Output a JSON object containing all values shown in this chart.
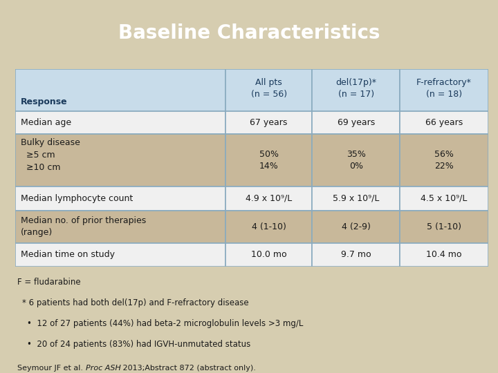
{
  "title": "Baseline Characteristics",
  "title_bg": "#0d3660",
  "title_color": "#ffffff",
  "page_bg": "#d6cdb0",
  "table_header_bg": "#c8dcea",
  "table_header_text": "#1a3a5c",
  "table_row_bg_light": "#f0f0f0",
  "table_row_bg_dark": "#c8b89a",
  "table_border_color": "#8aabbf",
  "col_headers": [
    "All pts\n(n = 56)",
    "del(17p)*\n(n = 17)",
    "F-refractory*\n(n = 18)"
  ],
  "row_label": "Response",
  "rows": [
    {
      "label": "Median age",
      "values": [
        "67 years",
        "69 years",
        "66 years"
      ],
      "bg": "light"
    },
    {
      "label": "Bulky disease\n  ≥5 cm\n  ≥10 cm",
      "values": [
        "50%\n14%",
        "35%\n0%",
        "56%\n22%"
      ],
      "bg": "dark"
    },
    {
      "label": "Median lymphocyte count",
      "values": [
        "4.9 x 10⁹/L",
        "5.9 x 10⁹/L",
        "4.5 x 10⁹/L"
      ],
      "bg": "light"
    },
    {
      "label": "Median no. of prior therapies\n(range)",
      "values": [
        "4 (1-10)",
        "4 (2-9)",
        "5 (1-10)"
      ],
      "bg": "dark"
    },
    {
      "label": "Median time on study",
      "values": [
        "10.0 mo",
        "9.7 mo",
        "10.4 mo"
      ],
      "bg": "light"
    }
  ],
  "footnote_f": "F = fludarabine",
  "footnote_star": "* 6 patients had both del(17p) and F-refractory disease",
  "bullet1": "12 of 27 patients (44%) had beta-2 microglobulin levels >3 mg/L",
  "bullet2": "20 of 24 patients (83%) had IGVH-unmutated status",
  "citation_before": "Seymour JF et al. ",
  "citation_italic": "Proc ASH",
  "citation_after": " 2013;Abstract 872 (abstract only)."
}
